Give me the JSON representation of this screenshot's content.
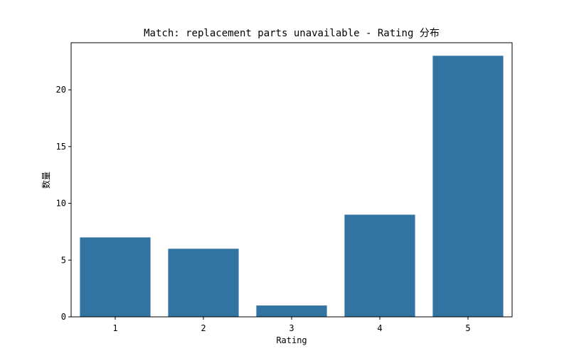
{
  "chart_data": {
    "type": "bar",
    "title": "Match: replacement parts unavailable - Rating 分布",
    "xlabel": "Rating",
    "ylabel": "数量",
    "categories": [
      "1",
      "2",
      "3",
      "4",
      "5"
    ],
    "values": [
      7,
      6,
      1,
      9,
      23
    ],
    "yticks": [
      0,
      5,
      10,
      15,
      20
    ],
    "ylim": [
      0,
      24.15
    ],
    "bar_color": "#3274a1",
    "grid": false,
    "legend": "none"
  }
}
